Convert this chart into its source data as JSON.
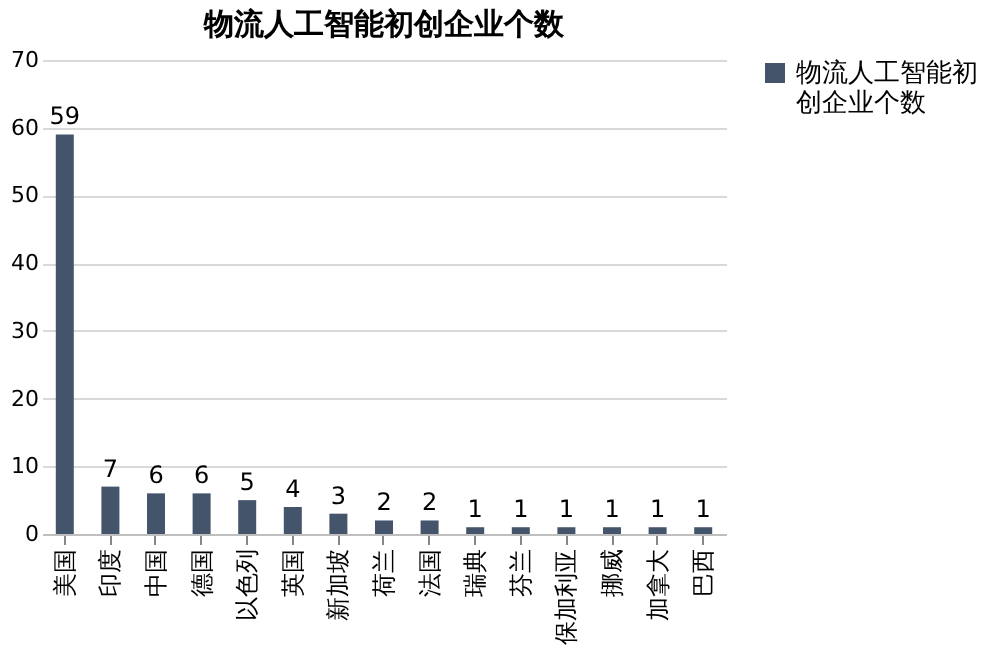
{
  "chart_data": {
    "type": "bar",
    "title": "物流人工智能初创企业个数",
    "categories": [
      "美国",
      "印度",
      "中国",
      "德国",
      "以色列",
      "英国",
      "新加坡",
      "荷兰",
      "法国",
      "瑞典",
      "芬兰",
      "保加利亚",
      "挪威",
      "加拿大",
      "巴西"
    ],
    "series": [
      {
        "name": "物流人工智能初创企业个数",
        "color": "#44546a",
        "values": [
          59,
          7,
          6,
          6,
          5,
          4,
          3,
          2,
          2,
          1,
          1,
          1,
          1,
          1,
          1
        ]
      }
    ],
    "ylim": [
      0,
      70
    ],
    "yticks": [
      0,
      10,
      20,
      30,
      40,
      50,
      60,
      70
    ],
    "grid": "y",
    "legend": "right",
    "data_labels": true
  }
}
